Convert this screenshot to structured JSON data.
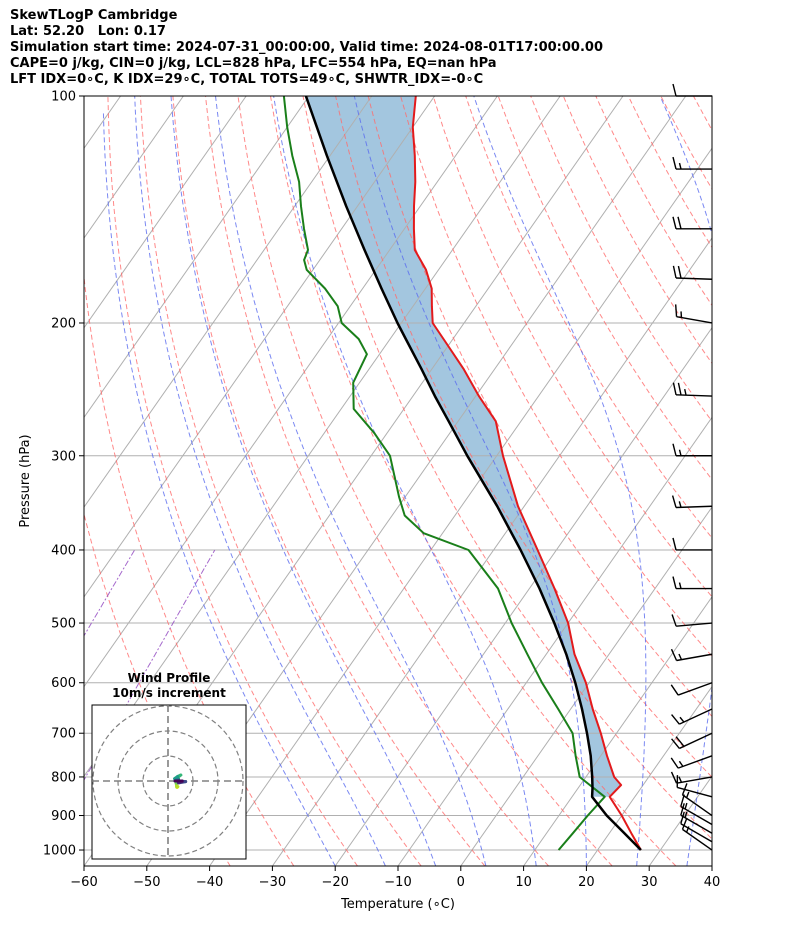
{
  "header": {
    "line1": "SkewTLogP Cambridge",
    "line2": "Lat: 52.20   Lon: 0.17",
    "line3": "Simulation start time: 2024-07-31_00:00:00, Valid time: 2024-08-01T17:00:00.00",
    "line4": "CAPE=0 j/kg, CIN=0 j/kg, LCL=828 hPa, LFC=554 hPa, EQ=nan hPa",
    "line5": "LFT IDX=0∘C, K IDX=29∘C, TOTAL TOTS=49∘C, SHWTR_IDX=-0∘C"
  },
  "chart_data": {
    "type": "skew-t log-p",
    "xlabel": "Temperature (∘C)",
    "ylabel": "Pressure (hPa)",
    "xlim": [
      -60,
      40
    ],
    "ylim": [
      1050,
      100
    ],
    "x_ticks": [
      -60,
      -50,
      -40,
      -30,
      -20,
      -10,
      0,
      10,
      20,
      30,
      40
    ],
    "x_tick_labels": [
      "−60",
      "−50",
      "−40",
      "−30",
      "−20",
      "−10",
      "0",
      "10",
      "20",
      "30",
      "40"
    ],
    "y_ticks": [
      1000,
      900,
      800,
      700,
      600,
      500,
      400,
      300,
      200,
      100
    ],
    "y_tick_labels": [
      "1000",
      "900",
      "800",
      "700",
      "600",
      "500",
      "400",
      "300",
      "200",
      "100"
    ],
    "y_scale": "log",
    "grid": true,
    "colors": {
      "temperature": "#e31a1c",
      "dewpoint": "#1a7f1a",
      "parcel": "#000000",
      "cape_fill": "#a3c6df",
      "dry_adiabat": "#ff6b6b",
      "moist_adiabat": "#5a6bef",
      "mixing_ratio": "#9b59c6"
    },
    "temperature": {
      "name": "Temperature",
      "pressure": [
        1000,
        950,
        900,
        850,
        820,
        800,
        750,
        700,
        650,
        600,
        550,
        500,
        450,
        400,
        350,
        300,
        270,
        250,
        230,
        210,
        200,
        190,
        180,
        170,
        160,
        150,
        140,
        130,
        120,
        110,
        100
      ],
      "temperature": [
        26.9,
        23.5,
        20.0,
        16.0,
        16.5,
        14.5,
        11.0,
        7.5,
        3.5,
        -0.5,
        -5.5,
        -10.0,
        -16.0,
        -23.0,
        -31.0,
        -39.0,
        -44.0,
        -49.5,
        -55.0,
        -61.5,
        -65.0,
        -67.0,
        -69.0,
        -72.0,
        -76.0,
        -78.5,
        -81.0,
        -83.5,
        -86.5,
        -90.0,
        -93.0
      ]
    },
    "dewpoint": {
      "name": "Dewpoint",
      "pressure": [
        1000,
        950,
        900,
        850,
        800,
        750,
        700,
        650,
        600,
        550,
        500,
        450,
        400,
        380,
        360,
        340,
        300,
        280,
        260,
        240,
        230,
        220,
        210,
        200,
        190,
        180,
        170,
        165,
        160,
        150,
        140,
        130,
        120,
        110,
        100
      ],
      "dewpoint": [
        13.8,
        14.2,
        14.6,
        15.2,
        9.0,
        6.0,
        3.0,
        -2.0,
        -7.5,
        -13.0,
        -19.0,
        -25.0,
        -34.0,
        -43.0,
        -48.0,
        -51.0,
        -57.0,
        -62.0,
        -68.0,
        -71.0,
        -71.5,
        -72.0,
        -75.0,
        -79.5,
        -82.0,
        -86.0,
        -91.0,
        -92.5,
        -93.0,
        -96.0,
        -99.0,
        -102.0,
        -106.0,
        -110.0,
        -114.0
      ]
    },
    "parcel": {
      "name": "Parcel",
      "pressure": [
        1000,
        950,
        900,
        850,
        828,
        800,
        750,
        700,
        650,
        600,
        550,
        500,
        450,
        400,
        350,
        300,
        270,
        250,
        230,
        210,
        200,
        180,
        160,
        140,
        120,
        100
      ],
      "temperature": [
        26.9,
        22.4,
        17.6,
        13.2,
        12.3,
        11.0,
        8.4,
        5.3,
        1.8,
        -2.2,
        -6.8,
        -12.2,
        -18.4,
        -25.7,
        -34.3,
        -44.7,
        -51.5,
        -56.5,
        -61.7,
        -67.5,
        -70.6,
        -77.0,
        -84.0,
        -91.8,
        -100.5,
        -110.5
      ]
    },
    "wind_barbs": {
      "pressure": [
        1000,
        975,
        950,
        925,
        900,
        850,
        800,
        750,
        700,
        650,
        600,
        550,
        500,
        450,
        400,
        350,
        300,
        250,
        200,
        175,
        150,
        125,
        100
      ],
      "speed_kt": [
        16,
        14,
        16,
        16,
        15,
        12,
        15,
        15,
        20,
        15,
        10,
        15,
        10,
        15,
        10,
        15,
        15,
        25,
        15,
        20,
        20,
        15,
        10
      ],
      "direction_deg": [
        305,
        300,
        300,
        300,
        305,
        285,
        260,
        250,
        245,
        245,
        250,
        260,
        265,
        270,
        270,
        268,
        270,
        272,
        280,
        272,
        270,
        270,
        270
      ]
    },
    "wind_profile_inset": {
      "title": "Wind Profile",
      "subtitle": "10m/s increment",
      "rings_ms": [
        10,
        20,
        30
      ]
    }
  }
}
